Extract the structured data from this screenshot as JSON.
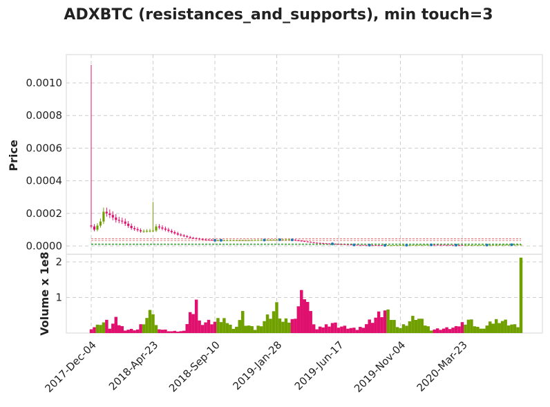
{
  "chart_data": {
    "type": "candlestick",
    "title": "ADXBTC (resistances_and_supports), min touch=3",
    "price_panel": {
      "ylabel": "Price",
      "yticks": [
        "0.0000",
        "0.0002",
        "0.0004",
        "0.0006",
        "0.0008",
        "0.0010"
      ],
      "ylim": [
        0,
        0.00115
      ],
      "grid": true,
      "resistance_levels": [
        4.4e-05,
        3.4e-05
      ],
      "support_levels": [
        1.25e-05,
        8.5e-06
      ],
      "resistance_color": "#e04a4a",
      "support_color": "#2ca02c",
      "touch_marker_color": "#1f77b4"
    },
    "volume_panel": {
      "ylabel": "Volume x 1e8",
      "yticks": [
        "1",
        "2"
      ],
      "ylim": [
        0,
        2.1
      ],
      "grid": true
    },
    "xticks": [
      "2017-Dec-04",
      "2018-Apr-23",
      "2018-Sep-10",
      "2019-Jan-28",
      "2019-Jun-17",
      "2019-Nov-04",
      "2020-Mar-23"
    ],
    "xtick_week_index": [
      0,
      20,
      40,
      60,
      80,
      100,
      120
    ],
    "weeks": 140,
    "up_color": "#6fa000",
    "down_color": "#e0116e",
    "anchors": {
      "close": [
        [
          0,
          0.00012
        ],
        [
          1,
          0.0001
        ],
        [
          3,
          0.00015
        ],
        [
          4,
          0.00021
        ],
        [
          6,
          0.00019
        ],
        [
          8,
          0.00016
        ],
        [
          10,
          0.00015
        ],
        [
          13,
          0.00011
        ],
        [
          16,
          9e-05
        ],
        [
          20,
          9.5e-05
        ],
        [
          21,
          0.00012
        ],
        [
          24,
          0.0001
        ],
        [
          28,
          7e-05
        ],
        [
          32,
          5e-05
        ],
        [
          36,
          4e-05
        ],
        [
          40,
          3.5e-05
        ],
        [
          50,
          3.5e-05
        ],
        [
          60,
          3.8e-05
        ],
        [
          64,
          4e-05
        ],
        [
          68,
          3e-05
        ],
        [
          72,
          2e-05
        ],
        [
          76,
          1.5e-05
        ],
        [
          80,
          1.2e-05
        ],
        [
          86,
          6e-06
        ],
        [
          95,
          4e-06
        ],
        [
          110,
          7e-06
        ],
        [
          120,
          5e-06
        ],
        [
          130,
          6e-06
        ],
        [
          139,
          8e-06
        ]
      ],
      "volume": [
        [
          0,
          0.15
        ],
        [
          2,
          0.2
        ],
        [
          3,
          0.3
        ],
        [
          5,
          0.3
        ],
        [
          6,
          0.15
        ],
        [
          8,
          0.35
        ],
        [
          9,
          0.25
        ],
        [
          11,
          0.1
        ],
        [
          15,
          0.1
        ],
        [
          20,
          0.6
        ],
        [
          21,
          0.2
        ],
        [
          23,
          0.1
        ],
        [
          26,
          0.05
        ],
        [
          30,
          0.05
        ],
        [
          34,
          1.0
        ],
        [
          35,
          0.3
        ],
        [
          40,
          0.3
        ],
        [
          44,
          0.4
        ],
        [
          46,
          0.1
        ],
        [
          49,
          0.5
        ],
        [
          50,
          0.25
        ],
        [
          53,
          0.1
        ],
        [
          60,
          0.7
        ],
        [
          62,
          0.3
        ],
        [
          65,
          0.35
        ],
        [
          69,
          1.25
        ],
        [
          71,
          0.5
        ],
        [
          73,
          0.1
        ],
        [
          78,
          0.3
        ],
        [
          80,
          0.2
        ],
        [
          86,
          0.1
        ],
        [
          95,
          0.6
        ],
        [
          100,
          0.15
        ],
        [
          105,
          0.45
        ],
        [
          110,
          0.1
        ],
        [
          118,
          0.15
        ],
        [
          122,
          0.4
        ],
        [
          126,
          0.1
        ],
        [
          132,
          0.4
        ],
        [
          137,
          0.2
        ],
        [
          138,
          0.2
        ],
        [
          139,
          2.0
        ]
      ]
    }
  }
}
